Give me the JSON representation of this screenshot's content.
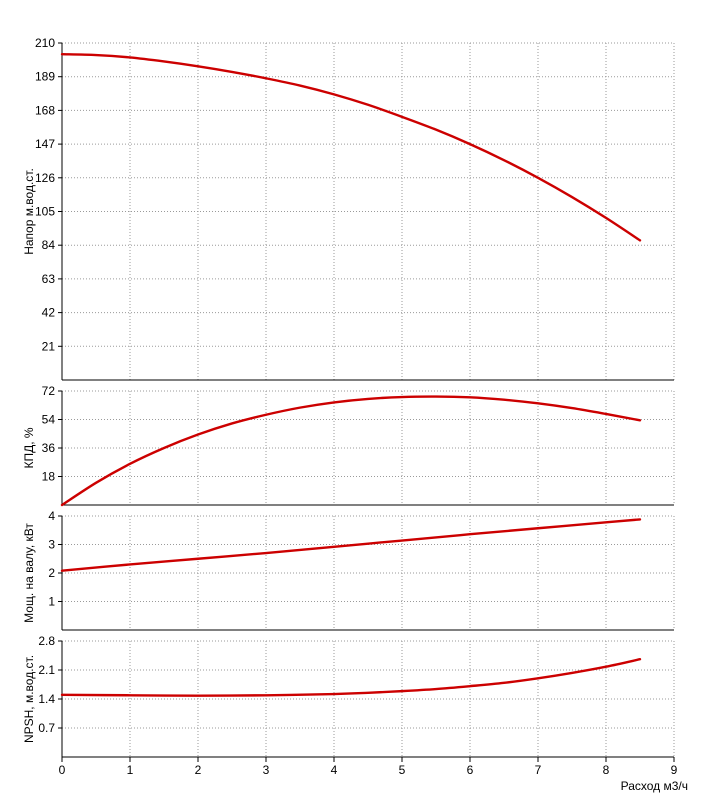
{
  "chart_data": [
    {
      "type": "line",
      "ylabel": "Напор м.вод.ст.",
      "ylim": [
        0,
        210
      ],
      "yticks": [
        21,
        42,
        63,
        84,
        105,
        126,
        147,
        168,
        189,
        210
      ],
      "xlim": [
        0,
        9
      ],
      "grid": true,
      "color": "#cc0000",
      "x": [
        0,
        0.5,
        1,
        1.5,
        2,
        2.5,
        3,
        3.5,
        4,
        4.5,
        5,
        5.5,
        6,
        6.5,
        7,
        7.5,
        8,
        8.5
      ],
      "y": [
        203,
        202.5,
        201,
        198.5,
        195.5,
        192,
        188,
        183.5,
        178,
        171.5,
        164,
        156,
        147,
        137,
        126,
        114,
        101,
        87
      ]
    },
    {
      "type": "line",
      "ylabel": "КПД, %",
      "ylim": [
        0,
        72
      ],
      "yticks": [
        18,
        36,
        54,
        72
      ],
      "xlim": [
        0,
        9
      ],
      "grid": true,
      "color": "#cc0000",
      "x": [
        0,
        0.5,
        1,
        1.5,
        2,
        2.5,
        3,
        3.5,
        4,
        4.5,
        5,
        5.5,
        6,
        6.5,
        7,
        7.5,
        8,
        8.5
      ],
      "y": [
        0,
        14,
        26,
        36,
        44.5,
        51.5,
        57,
        61.5,
        64.8,
        67,
        68.2,
        68.5,
        68,
        66.5,
        64.2,
        61.2,
        57.5,
        53.5
      ]
    },
    {
      "type": "line",
      "ylabel": "Мощ. на валу, кВт",
      "ylim": [
        0,
        4
      ],
      "yticks": [
        1,
        2,
        3,
        4
      ],
      "xlim": [
        0,
        9
      ],
      "grid": true,
      "color": "#cc0000",
      "x": [
        0,
        1,
        2,
        3,
        4,
        5,
        6,
        7,
        8,
        8.5
      ],
      "y": [
        2.08,
        2.3,
        2.5,
        2.7,
        2.92,
        3.14,
        3.36,
        3.57,
        3.78,
        3.88
      ]
    },
    {
      "type": "line",
      "ylabel": "NPSH, м.вод.ст.",
      "ylim": [
        0,
        2.8
      ],
      "yticks": [
        0.7,
        1.4,
        2.1,
        2.8
      ],
      "xlim": [
        0,
        9
      ],
      "xticks": [
        0,
        1,
        2,
        3,
        4,
        5,
        6,
        7,
        8,
        9
      ],
      "xlabel": "Расход м3/ч",
      "grid": true,
      "color": "#cc0000",
      "x": [
        0,
        1,
        2,
        3,
        4,
        4.5,
        5,
        5.5,
        6,
        6.5,
        7,
        7.5,
        8,
        8.5
      ],
      "y": [
        1.5,
        1.49,
        1.48,
        1.49,
        1.52,
        1.55,
        1.59,
        1.64,
        1.71,
        1.79,
        1.9,
        2.03,
        2.18,
        2.36
      ]
    }
  ]
}
